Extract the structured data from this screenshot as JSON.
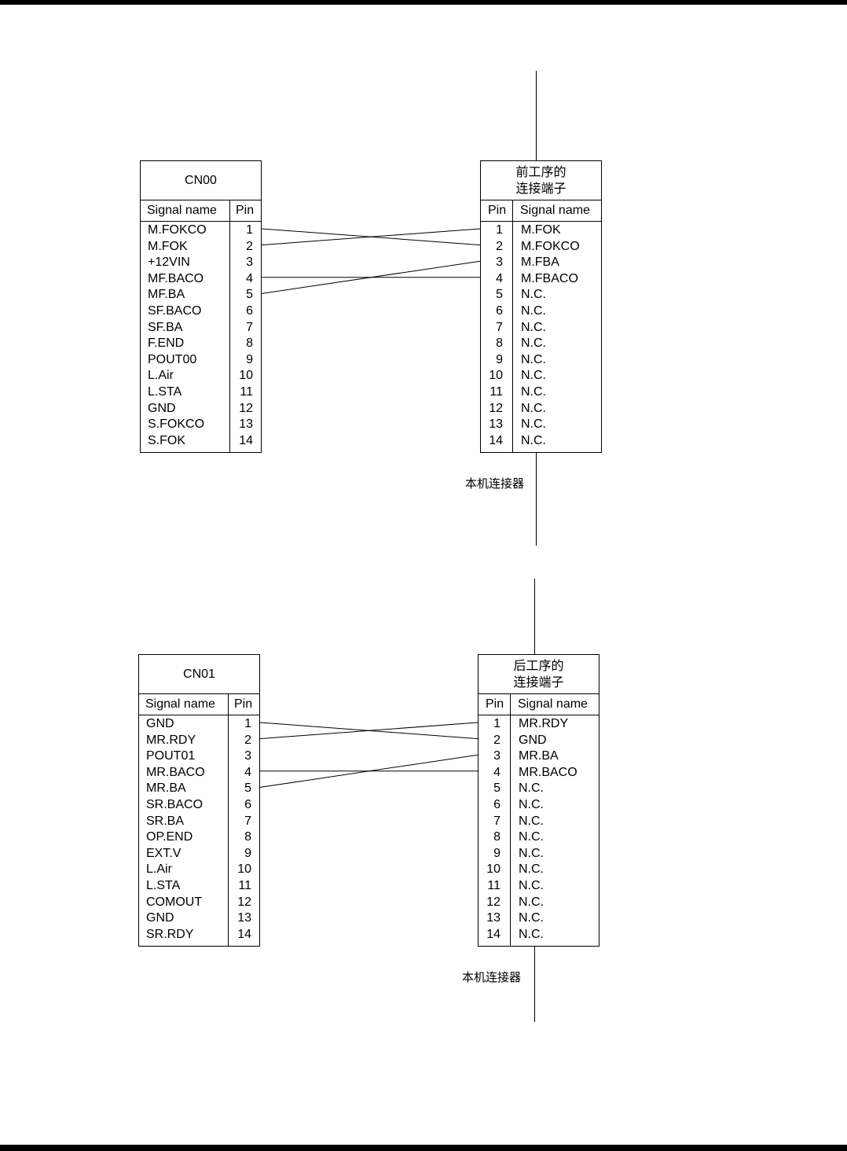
{
  "diagrams": [
    {
      "left_connector": {
        "title": "CN00",
        "col_signal": "Signal name",
        "col_pin": "Pin",
        "rows": [
          {
            "signal": "M.FOKCO",
            "pin": "1"
          },
          {
            "signal": "M.FOK",
            "pin": "2"
          },
          {
            "signal": "+12VIN",
            "pin": "3"
          },
          {
            "signal": "MF.BACO",
            "pin": "4"
          },
          {
            "signal": "MF.BA",
            "pin": "5"
          },
          {
            "signal": "SF.BACO",
            "pin": "6"
          },
          {
            "signal": "SF.BA",
            "pin": "7"
          },
          {
            "signal": "F.END",
            "pin": "8"
          },
          {
            "signal": "POUT00",
            "pin": "9"
          },
          {
            "signal": "L.Air",
            "pin": "10"
          },
          {
            "signal": "L.STA",
            "pin": "11"
          },
          {
            "signal": "GND",
            "pin": "12"
          },
          {
            "signal": "S.FOKCO",
            "pin": "13"
          },
          {
            "signal": "S.FOK",
            "pin": "14"
          }
        ]
      },
      "right_connector": {
        "title_line1": "前工序的",
        "title_line2": "连接端子",
        "col_pin": "Pin",
        "col_signal": "Signal name",
        "rows": [
          {
            "pin": "1",
            "signal": "M.FOK"
          },
          {
            "pin": "2",
            "signal": "M.FOKCO"
          },
          {
            "pin": "3",
            "signal": "M.FBA"
          },
          {
            "pin": "4",
            "signal": "M.FBACO"
          },
          {
            "pin": "5",
            "signal": "N.C."
          },
          {
            "pin": "6",
            "signal": "N.C."
          },
          {
            "pin": "7",
            "signal": "N.C."
          },
          {
            "pin": "8",
            "signal": "N.C."
          },
          {
            "pin": "9",
            "signal": "N.C."
          },
          {
            "pin": "10",
            "signal": "N.C."
          },
          {
            "pin": "11",
            "signal": "N.C."
          },
          {
            "pin": "12",
            "signal": "N.C."
          },
          {
            "pin": "13",
            "signal": "N.C."
          },
          {
            "pin": "14",
            "signal": "N.C."
          }
        ]
      },
      "connections": [
        [
          1,
          2
        ],
        [
          2,
          1
        ],
        [
          4,
          4
        ],
        [
          5,
          3
        ]
      ],
      "machine_connector_label": "本机连接器"
    },
    {
      "left_connector": {
        "title": "CN01",
        "col_signal": "Signal name",
        "col_pin": "Pin",
        "rows": [
          {
            "signal": "GND",
            "pin": "1"
          },
          {
            "signal": "MR.RDY",
            "pin": "2"
          },
          {
            "signal": "POUT01",
            "pin": "3"
          },
          {
            "signal": "MR.BACO",
            "pin": "4"
          },
          {
            "signal": "MR.BA",
            "pin": "5"
          },
          {
            "signal": "SR.BACO",
            "pin": "6"
          },
          {
            "signal": "SR.BA",
            "pin": "7"
          },
          {
            "signal": "OP.END",
            "pin": "8"
          },
          {
            "signal": "EXT.V",
            "pin": "9"
          },
          {
            "signal": "L.Air",
            "pin": "10"
          },
          {
            "signal": "L.STA",
            "pin": "11"
          },
          {
            "signal": "COMOUT",
            "pin": "12"
          },
          {
            "signal": "GND",
            "pin": "13"
          },
          {
            "signal": "SR.RDY",
            "pin": "14"
          }
        ]
      },
      "right_connector": {
        "title_line1": "后工序的",
        "title_line2": "连接端子",
        "col_pin": "Pin",
        "col_signal": "Signal name",
        "rows": [
          {
            "pin": "1",
            "signal": "MR.RDY"
          },
          {
            "pin": "2",
            "signal": "GND"
          },
          {
            "pin": "3",
            "signal": "MR.BA"
          },
          {
            "pin": "4",
            "signal": "MR.BACO"
          },
          {
            "pin": "5",
            "signal": "N.C."
          },
          {
            "pin": "6",
            "signal": "N.C."
          },
          {
            "pin": "7",
            "signal": "N.C."
          },
          {
            "pin": "8",
            "signal": "N.C."
          },
          {
            "pin": "9",
            "signal": "N.C."
          },
          {
            "pin": "10",
            "signal": "N.C."
          },
          {
            "pin": "11",
            "signal": "N.C."
          },
          {
            "pin": "12",
            "signal": "N.C."
          },
          {
            "pin": "13",
            "signal": "N.C."
          },
          {
            "pin": "14",
            "signal": "N.C."
          }
        ]
      },
      "connections": [
        [
          1,
          2
        ],
        [
          2,
          1
        ],
        [
          4,
          4
        ],
        [
          5,
          3
        ]
      ],
      "machine_connector_label": "本机连接器"
    }
  ]
}
